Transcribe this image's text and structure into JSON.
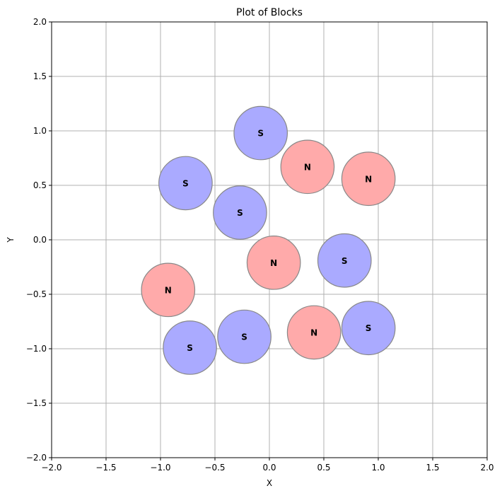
{
  "chart_data": {
    "type": "scatter",
    "title": "Plot of Blocks",
    "xlabel": "X",
    "ylabel": "Y",
    "xlim": [
      -2.0,
      2.0
    ],
    "ylim": [
      -2.0,
      2.0
    ],
    "grid": true,
    "x_ticks": [
      -2.0,
      -1.5,
      -1.0,
      -0.5,
      0.0,
      0.5,
      1.0,
      1.5,
      2.0
    ],
    "y_ticks": [
      -2.0,
      -1.5,
      -1.0,
      -0.5,
      0.0,
      0.5,
      1.0,
      1.5,
      2.0
    ],
    "x_tick_labels": [
      "−2.0",
      "−1.5",
      "−1.0",
      "−0.5",
      "0.0",
      "0.5",
      "1.0",
      "1.5",
      "2.0"
    ],
    "y_tick_labels": [
      "−2.0",
      "−1.5",
      "−1.0",
      "−0.5",
      "0.0",
      "0.5",
      "1.0",
      "1.5",
      "2.0"
    ],
    "marker_radius": 0.245,
    "colors": {
      "S": "#aaaaff",
      "N": "#ffaaaa",
      "edge": "#888888",
      "grid": "#b0b0b0"
    },
    "blocks": [
      {
        "x": -0.08,
        "y": 0.98,
        "label": "S"
      },
      {
        "x": 0.35,
        "y": 0.67,
        "label": "N"
      },
      {
        "x": 0.91,
        "y": 0.56,
        "label": "N"
      },
      {
        "x": -0.77,
        "y": 0.52,
        "label": "S"
      },
      {
        "x": -0.27,
        "y": 0.25,
        "label": "S"
      },
      {
        "x": 0.04,
        "y": -0.21,
        "label": "N"
      },
      {
        "x": 0.69,
        "y": -0.19,
        "label": "S"
      },
      {
        "x": -0.93,
        "y": -0.46,
        "label": "N"
      },
      {
        "x": -0.73,
        "y": -0.99,
        "label": "S"
      },
      {
        "x": -0.23,
        "y": -0.89,
        "label": "S"
      },
      {
        "x": 0.41,
        "y": -0.85,
        "label": "N"
      },
      {
        "x": 0.91,
        "y": -0.81,
        "label": "S"
      }
    ]
  }
}
